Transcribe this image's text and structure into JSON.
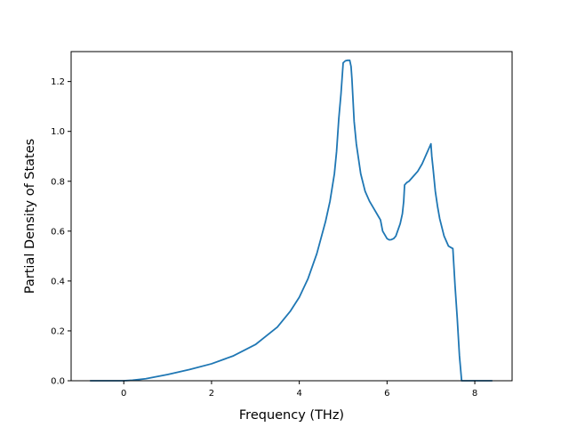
{
  "chart_data": {
    "type": "line",
    "title": "",
    "xlabel": "Frequency (THz)",
    "ylabel": "Partial Density of States",
    "xlim": [
      -1.2,
      8.85
    ],
    "ylim": [
      0.0,
      1.32
    ],
    "xticks": [
      0,
      2,
      4,
      6,
      8
    ],
    "yticks": [
      0.0,
      0.2,
      0.4,
      0.6,
      0.8,
      1.0,
      1.2
    ],
    "xtick_labels": [
      "0",
      "2",
      "4",
      "6",
      "8"
    ],
    "ytick_labels": [
      "0.0",
      "0.2",
      "0.4",
      "0.6",
      "0.8",
      "1.0",
      "1.2"
    ],
    "grid": false,
    "legend": "none",
    "series": [
      {
        "color": "#1f77b4",
        "x": [
          -0.77,
          -0.5,
          0.0,
          0.2,
          0.5,
          1.0,
          1.5,
          2.0,
          2.5,
          3.0,
          3.5,
          3.8,
          4.0,
          4.2,
          4.4,
          4.6,
          4.7,
          4.8,
          4.85,
          4.9,
          4.95,
          5.0,
          5.05,
          5.1,
          5.15,
          5.18,
          5.2,
          5.25,
          5.3,
          5.4,
          5.5,
          5.6,
          5.7,
          5.8,
          5.85,
          5.9,
          6.0,
          6.05,
          6.1,
          6.15,
          6.2,
          6.3,
          6.35,
          6.38,
          6.4,
          6.45,
          6.5,
          6.6,
          6.7,
          6.8,
          6.9,
          6.95,
          7.0,
          7.02,
          7.05,
          7.1,
          7.15,
          7.2,
          7.3,
          7.4,
          7.45,
          7.5,
          7.55,
          7.6,
          7.65,
          7.7,
          7.8,
          8.0,
          8.2,
          8.4
        ],
        "y": [
          0.0,
          0.0,
          0.0,
          0.002,
          0.008,
          0.025,
          0.045,
          0.068,
          0.1,
          0.145,
          0.215,
          0.28,
          0.335,
          0.41,
          0.51,
          0.64,
          0.72,
          0.83,
          0.92,
          1.05,
          1.15,
          1.275,
          1.283,
          1.285,
          1.285,
          1.26,
          1.21,
          1.04,
          0.95,
          0.83,
          0.76,
          0.72,
          0.69,
          0.66,
          0.645,
          0.6,
          0.57,
          0.565,
          0.566,
          0.57,
          0.58,
          0.63,
          0.67,
          0.72,
          0.785,
          0.795,
          0.8,
          0.82,
          0.84,
          0.87,
          0.91,
          0.93,
          0.95,
          0.9,
          0.85,
          0.76,
          0.7,
          0.65,
          0.58,
          0.54,
          0.535,
          0.53,
          0.38,
          0.25,
          0.1,
          0.0,
          0.0,
          0.0,
          0.0,
          0.0
        ]
      }
    ]
  }
}
